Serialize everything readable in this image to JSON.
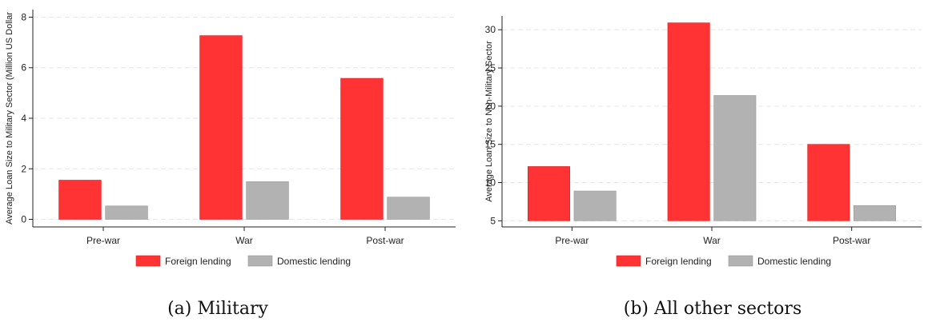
{
  "chart_data": [
    {
      "type": "bar",
      "caption": "(a) Military",
      "ylabel": "Average Loan Size to Military Sector (Million US Dollar",
      "categories": [
        "Pre-war",
        "War",
        "Post-war"
      ],
      "yticks": [
        0,
        2,
        4,
        6,
        8
      ],
      "ylim": [
        -0.3,
        8.3
      ],
      "baseline": 0,
      "grid": true,
      "legend_position": "bottom",
      "series": [
        {
          "name": "Foreign lending",
          "values": [
            1.55,
            7.27,
            5.58
          ]
        },
        {
          "name": "Domestic lending",
          "values": [
            0.53,
            1.49,
            0.88
          ]
        }
      ]
    },
    {
      "type": "bar",
      "caption": "(b) All other sectors",
      "ylabel": "Average Loan Size to Non-Military Sector",
      "categories": [
        "Pre-war",
        "War",
        "Post-war"
      ],
      "yticks": [
        5,
        10,
        15,
        20,
        25,
        30
      ],
      "ylim": [
        4.2,
        31.8
      ],
      "baseline": 5,
      "grid": true,
      "legend_position": "bottom",
      "series": [
        {
          "name": "Foreign lending",
          "values": [
            12.1,
            30.9,
            15.0
          ]
        },
        {
          "name": "Domestic lending",
          "values": [
            8.9,
            21.4,
            7.0
          ]
        }
      ]
    }
  ],
  "colors": {
    "Foreign lending": "#ff3333",
    "Domestic lending": "#b2b2b2"
  }
}
